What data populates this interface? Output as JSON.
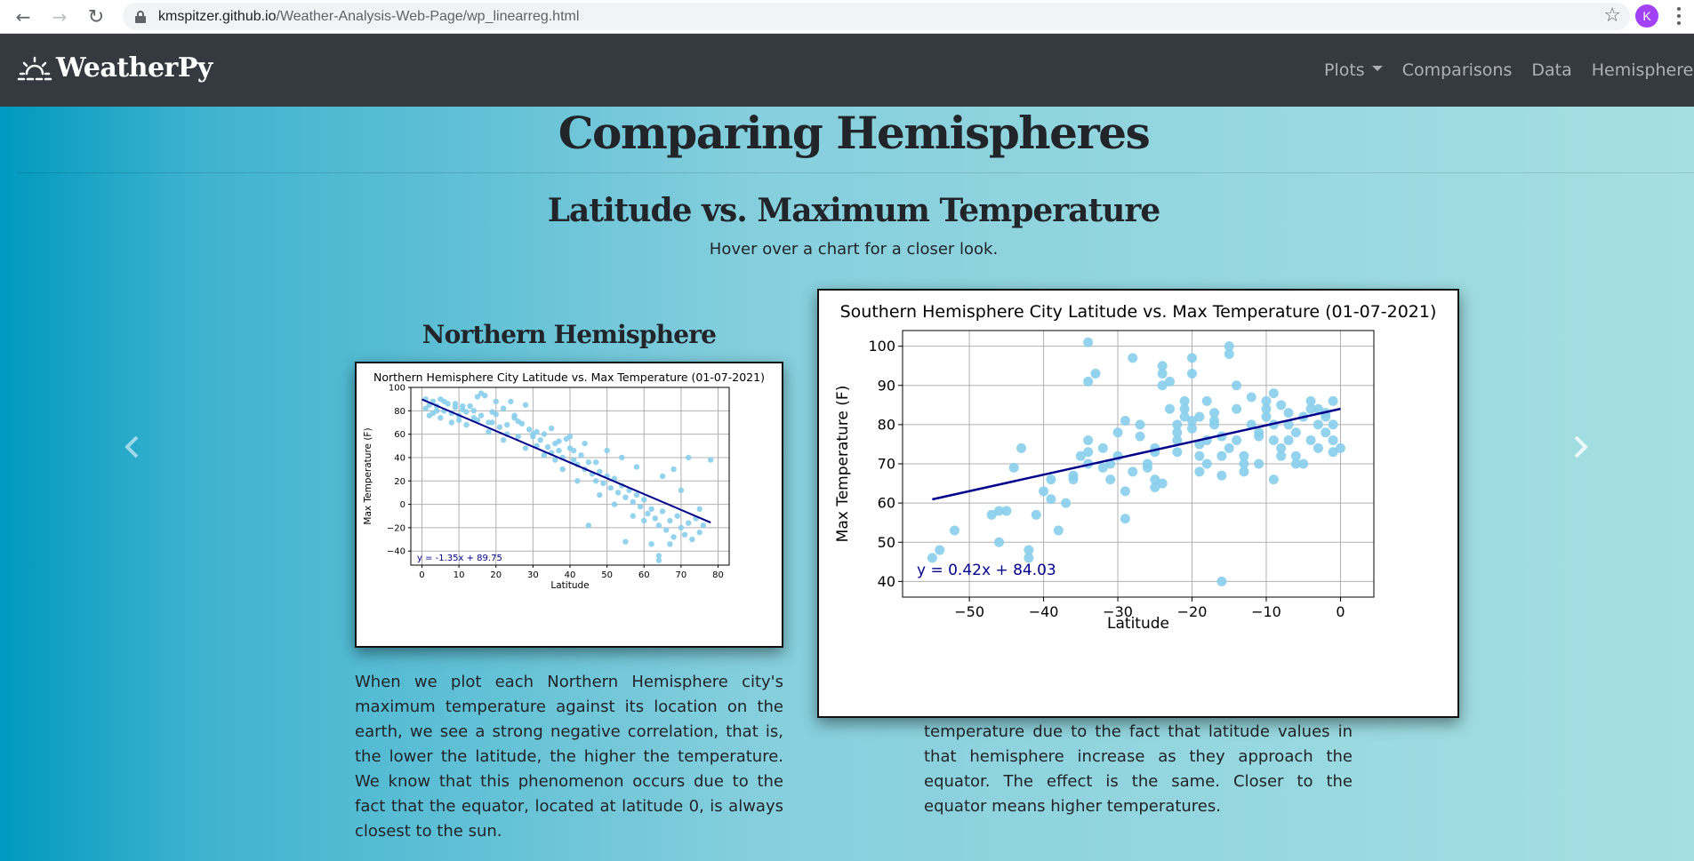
{
  "browser": {
    "url_host": "kmspitzer.github.io",
    "url_path": "/Weather-Analysis-Web-Page/wp_linearreg.html",
    "avatar_letter": "K"
  },
  "navbar": {
    "brand": "WeatherPy",
    "links": [
      "Plots",
      "Comparisons",
      "Data",
      "Hemispheres"
    ]
  },
  "page": {
    "title": "Comparing Hemispheres",
    "section_title": "Latitude vs. Maximum Temperature",
    "hint": "Hover over a chart for a closer look."
  },
  "north": {
    "heading": "Northern Hemisphere",
    "paragraph": "When we plot each Northern Hemisphere city's maximum temperature against its location on the earth, we see a strong negative correlation, that is, the lower the latitude, the higher the temperature. We know that this phenomenon occurs due to the fact that the equator, located at latitude 0, is always closest to the sun."
  },
  "south": {
    "paragraph_visible": "temperature due to the fact that latitude values in that hemisphere increase as they approach the equator. The effect is the same. Closer to the equator means higher temperatures."
  },
  "chart_data": [
    {
      "type": "scatter",
      "title": "Northern Hemisphere City Latitude vs. Max Temperature (01-07-2021)",
      "xlabel": "Latitude",
      "ylabel": "Max Temperature (F)",
      "xlim": [
        -3,
        83
      ],
      "ylim": [
        -52,
        100
      ],
      "xticks": [
        0,
        10,
        20,
        30,
        40,
        50,
        60,
        70,
        80
      ],
      "yticks": [
        -40,
        -20,
        0,
        20,
        40,
        60,
        80,
        100
      ],
      "grid": true,
      "regression": {
        "slope": -1.35,
        "intercept": 89.75,
        "x_range": [
          0,
          78
        ],
        "label": "y = -1.35x + 89.75"
      },
      "point_color": "#87ceeb",
      "line_color": "#00008b",
      "points": [
        [
          1,
          82
        ],
        [
          2,
          85
        ],
        [
          3,
          88
        ],
        [
          4,
          84
        ],
        [
          5,
          90
        ],
        [
          6,
          80
        ],
        [
          7,
          86
        ],
        [
          8,
          78
        ],
        [
          9,
          83
        ],
        [
          10,
          76
        ],
        [
          11,
          81
        ],
        [
          12,
          79
        ],
        [
          13,
          84
        ],
        [
          14,
          74
        ],
        [
          15,
          72
        ],
        [
          16,
          95
        ],
        [
          17,
          93
        ],
        [
          18,
          70
        ],
        [
          19,
          79
        ],
        [
          20,
          77
        ],
        [
          21,
          66
        ],
        [
          22,
          82
        ],
        [
          23,
          68
        ],
        [
          24,
          88
        ],
        [
          25,
          74
        ],
        [
          26,
          71
        ],
        [
          27,
          69
        ],
        [
          28,
          85
        ],
        [
          29,
          64
        ],
        [
          30,
          58
        ],
        [
          31,
          62
        ],
        [
          32,
          55
        ],
        [
          33,
          60
        ],
        [
          34,
          49
        ],
        [
          35,
          44
        ],
        [
          36,
          52
        ],
        [
          37,
          46
        ],
        [
          38,
          40
        ],
        [
          39,
          56
        ],
        [
          40,
          48
        ],
        [
          41,
          38
        ],
        [
          42,
          34
        ],
        [
          43,
          42
        ],
        [
          44,
          30
        ],
        [
          45,
          36
        ],
        [
          46,
          26
        ],
        [
          47,
          20
        ],
        [
          48,
          28
        ],
        [
          49,
          18
        ],
        [
          50,
          24
        ],
        [
          51,
          14
        ],
        [
          52,
          22
        ],
        [
          53,
          10
        ],
        [
          54,
          16
        ],
        [
          55,
          6
        ],
        [
          56,
          12
        ],
        [
          57,
          2
        ],
        [
          58,
          8
        ],
        [
          59,
          -2
        ],
        [
          60,
          4
        ],
        [
          61,
          -8
        ],
        [
          62,
          -4
        ],
        [
          63,
          -12
        ],
        [
          64,
          -18
        ],
        [
          65,
          -6
        ],
        [
          66,
          -22
        ],
        [
          67,
          -14
        ],
        [
          68,
          -28
        ],
        [
          69,
          -10
        ],
        [
          70,
          -20
        ],
        [
          71,
          -26
        ],
        [
          72,
          -16
        ],
        [
          73,
          -30
        ],
        [
          74,
          -12
        ],
        [
          75,
          -24
        ],
        [
          76,
          -18
        ],
        [
          78,
          38
        ],
        [
          64,
          -48
        ],
        [
          64,
          -44
        ],
        [
          62,
          -34
        ],
        [
          67,
          -34
        ],
        [
          55,
          -32
        ],
        [
          45,
          -18
        ],
        [
          40,
          58
        ],
        [
          30,
          60
        ],
        [
          25,
          76
        ],
        [
          35,
          65
        ],
        [
          20,
          88
        ],
        [
          15,
          92
        ],
        [
          10,
          72
        ],
        [
          5,
          74
        ],
        [
          3,
          78
        ],
        [
          8,
          70
        ],
        [
          12,
          68
        ],
        [
          18,
          62
        ],
        [
          22,
          55
        ],
        [
          28,
          48
        ],
        [
          33,
          42
        ],
        [
          38,
          30
        ],
        [
          42,
          20
        ],
        [
          48,
          8
        ],
        [
          52,
          0
        ],
        [
          57,
          -10
        ],
        [
          60,
          -14
        ],
        [
          65,
          24
        ],
        [
          68,
          30
        ],
        [
          70,
          12
        ],
        [
          72,
          40
        ],
        [
          75,
          -4
        ],
        [
          58,
          32
        ],
        [
          54,
          40
        ],
        [
          50,
          46
        ],
        [
          47,
          36
        ],
        [
          44,
          52
        ],
        [
          41,
          46
        ],
        [
          37,
          54
        ],
        [
          36,
          38
        ],
        [
          31,
          50
        ],
        [
          26,
          58
        ],
        [
          23,
          60
        ],
        [
          19,
          70
        ],
        [
          16,
          76
        ],
        [
          14,
          80
        ],
        [
          11,
          84
        ],
        [
          9,
          86
        ],
        [
          6,
          88
        ],
        [
          4,
          80
        ],
        [
          2,
          76
        ],
        [
          1,
          90
        ]
      ]
    },
    {
      "type": "scatter",
      "title": "Southern Hemisphere City Latitude vs. Max Temperature (01-07-2021)",
      "xlabel": "Latitude",
      "ylabel": "Max Temperature (F)",
      "xlim": [
        -59,
        4.5
      ],
      "ylim": [
        36,
        104
      ],
      "xticks": [
        -50,
        -40,
        -30,
        -20,
        -10,
        0
      ],
      "yticks": [
        40,
        50,
        60,
        70,
        80,
        90,
        100
      ],
      "grid": true,
      "regression": {
        "slope": 0.42,
        "intercept": 84.03,
        "x_range": [
          -55,
          0
        ],
        "label": "y = 0.42x + 84.03"
      },
      "point_color": "#87ceeb",
      "line_color": "#00008b",
      "points": [
        [
          -55,
          46
        ],
        [
          -54,
          48
        ],
        [
          -52,
          53
        ],
        [
          -47,
          57
        ],
        [
          -46,
          58
        ],
        [
          -45,
          58
        ],
        [
          -46,
          50
        ],
        [
          -42,
          48
        ],
        [
          -42,
          46
        ],
        [
          -41,
          57
        ],
        [
          -39,
          61
        ],
        [
          -39,
          66
        ],
        [
          -38,
          53
        ],
        [
          -36,
          66
        ],
        [
          -36,
          67
        ],
        [
          -34,
          70
        ],
        [
          -34,
          76
        ],
        [
          -34,
          73
        ],
        [
          -34,
          101
        ],
        [
          -33,
          93
        ],
        [
          -34,
          91
        ],
        [
          -32,
          69
        ],
        [
          -31,
          66
        ],
        [
          -31,
          70
        ],
        [
          -30,
          72
        ],
        [
          -29,
          63
        ],
        [
          -29,
          81
        ],
        [
          -28,
          97
        ],
        [
          -27,
          77
        ],
        [
          -26,
          70
        ],
        [
          -26,
          69
        ],
        [
          -25,
          66
        ],
        [
          -25,
          64
        ],
        [
          -25,
          73
        ],
        [
          -24,
          95
        ],
        [
          -24,
          93
        ],
        [
          -24,
          90
        ],
        [
          -23,
          91
        ],
        [
          -22,
          80
        ],
        [
          -22,
          76
        ],
        [
          -22,
          73
        ],
        [
          -21,
          86
        ],
        [
          -21,
          84
        ],
        [
          -21,
          82
        ],
        [
          -20,
          97
        ],
        [
          -20,
          93
        ],
        [
          -20,
          79
        ],
        [
          -20,
          81
        ],
        [
          -19,
          75
        ],
        [
          -19,
          72
        ],
        [
          -19,
          68
        ],
        [
          -18,
          70
        ],
        [
          -18,
          76
        ],
        [
          -18,
          86
        ],
        [
          -17,
          83
        ],
        [
          -17,
          81
        ],
        [
          -17,
          80
        ],
        [
          -16,
          77
        ],
        [
          -16,
          67
        ],
        [
          -16,
          72
        ],
        [
          -15,
          100
        ],
        [
          -15,
          98
        ],
        [
          -14,
          90
        ],
        [
          -14,
          84
        ],
        [
          -14,
          76
        ],
        [
          -13,
          72
        ],
        [
          -13,
          70
        ],
        [
          -13,
          68
        ],
        [
          -12,
          80
        ],
        [
          -11,
          78
        ],
        [
          -11,
          77
        ],
        [
          -10,
          84
        ],
        [
          -10,
          86
        ],
        [
          -10,
          82
        ],
        [
          -9,
          88
        ],
        [
          -9,
          66
        ],
        [
          -9,
          76
        ],
        [
          -8,
          74
        ],
        [
          -8,
          85
        ],
        [
          -7,
          83
        ],
        [
          -7,
          80
        ],
        [
          -6,
          78
        ],
        [
          -6,
          72
        ],
        [
          -5,
          70
        ],
        [
          -5,
          82
        ],
        [
          -4,
          84
        ],
        [
          -4,
          86
        ],
        [
          -4,
          76
        ],
        [
          -3,
          74
        ],
        [
          -3,
          80
        ],
        [
          -2,
          83
        ],
        [
          -2,
          78
        ],
        [
          -1,
          76
        ],
        [
          -1,
          86
        ],
        [
          -1,
          73
        ],
        [
          0,
          74
        ],
        [
          -16,
          40
        ],
        [
          -12,
          87
        ],
        [
          -8,
          72
        ],
        [
          -6,
          70
        ],
        [
          -3,
          84
        ],
        [
          -22,
          78
        ],
        [
          -23,
          84
        ],
        [
          -27,
          80
        ],
        [
          -28,
          68
        ],
        [
          -30,
          78
        ],
        [
          -32,
          74
        ],
        [
          -35,
          72
        ],
        [
          -37,
          60
        ],
        [
          -40,
          63
        ],
        [
          -43,
          74
        ],
        [
          -44,
          69
        ],
        [
          -29,
          56
        ],
        [
          -24,
          65
        ],
        [
          -25,
          74
        ],
        [
          -19,
          82
        ],
        [
          -15,
          74
        ],
        [
          -11,
          70
        ],
        [
          -9,
          80
        ],
        [
          -7,
          76
        ],
        [
          -2,
          82
        ],
        [
          -1,
          80
        ]
      ]
    }
  ]
}
